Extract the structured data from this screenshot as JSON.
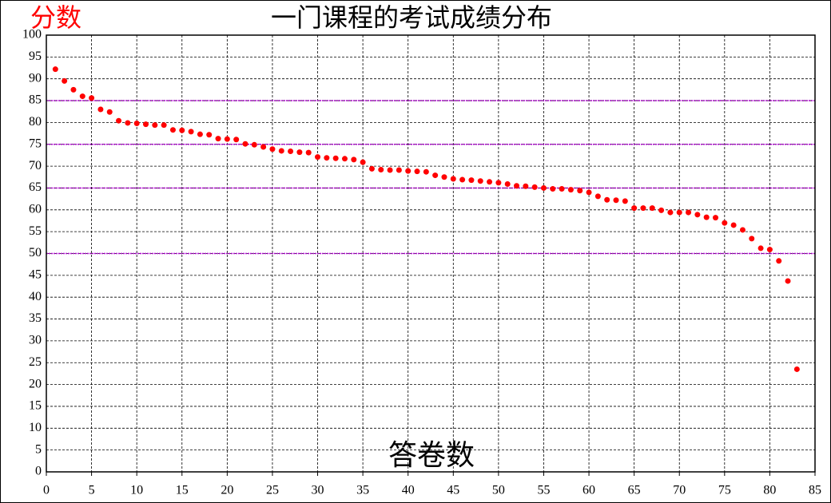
{
  "chart_data": {
    "type": "scatter",
    "title": "一门课程的考试成绩分布",
    "y_label": "分数",
    "x_label": "答卷数",
    "x": [
      1,
      2,
      3,
      4,
      5,
      6,
      7,
      8,
      9,
      10,
      11,
      12,
      13,
      14,
      15,
      16,
      17,
      18,
      19,
      20,
      21,
      22,
      23,
      24,
      25,
      26,
      27,
      28,
      29,
      30,
      31,
      32,
      33,
      34,
      35,
      36,
      37,
      38,
      39,
      40,
      41,
      42,
      43,
      44,
      45,
      46,
      47,
      48,
      49,
      50,
      51,
      52,
      53,
      54,
      55,
      56,
      57,
      58,
      59,
      60,
      61,
      62,
      63,
      64,
      65,
      66,
      67,
      68,
      69,
      70,
      71,
      72,
      73,
      74,
      75,
      76,
      77,
      78,
      79,
      80,
      81,
      82,
      83
    ],
    "values": [
      92.2,
      89.5,
      87.5,
      86,
      85.6,
      83,
      82.4,
      80.4,
      79.9,
      79.8,
      79.6,
      79.4,
      79.4,
      78.3,
      78.2,
      77.9,
      77.3,
      77.2,
      76.3,
      76.2,
      76.1,
      75.1,
      74.9,
      74.4,
      73.9,
      73.5,
      73.4,
      73.2,
      73.1,
      72.1,
      71.9,
      71.8,
      71.7,
      71.5,
      70.9,
      69.4,
      69.2,
      69.1,
      69.1,
      68.9,
      68.8,
      68.7,
      67.9,
      67.5,
      67.1,
      66.9,
      66.8,
      66.6,
      66.4,
      66.2,
      65.9,
      65.5,
      65.4,
      65.2,
      65.0,
      64.8,
      64.8,
      64.6,
      64.4,
      64.0,
      63.1,
      62.3,
      62.2,
      62.0,
      60.4,
      60.4,
      60.4,
      59.9,
      59.4,
      59.4,
      59.4,
      58.9,
      58.3,
      58.2,
      57.0,
      56.5,
      55.4,
      53.4,
      51.2,
      50.9,
      48.3,
      43.7,
      23.5
    ],
    "color": "#ff0000",
    "xlim": [
      0,
      85
    ],
    "xticks": [
      0,
      5,
      10,
      15,
      20,
      25,
      30,
      35,
      40,
      45,
      50,
      55,
      60,
      65,
      70,
      75,
      80,
      85
    ],
    "ylim": [
      0,
      100
    ],
    "yticks": [
      0,
      5,
      10,
      15,
      20,
      25,
      30,
      35,
      40,
      45,
      50,
      55,
      60,
      65,
      70,
      75,
      80,
      85,
      90,
      95,
      100
    ],
    "grid": true,
    "reference_lines": [
      50,
      65,
      75,
      85
    ],
    "reference_color": "#aa00cc"
  }
}
